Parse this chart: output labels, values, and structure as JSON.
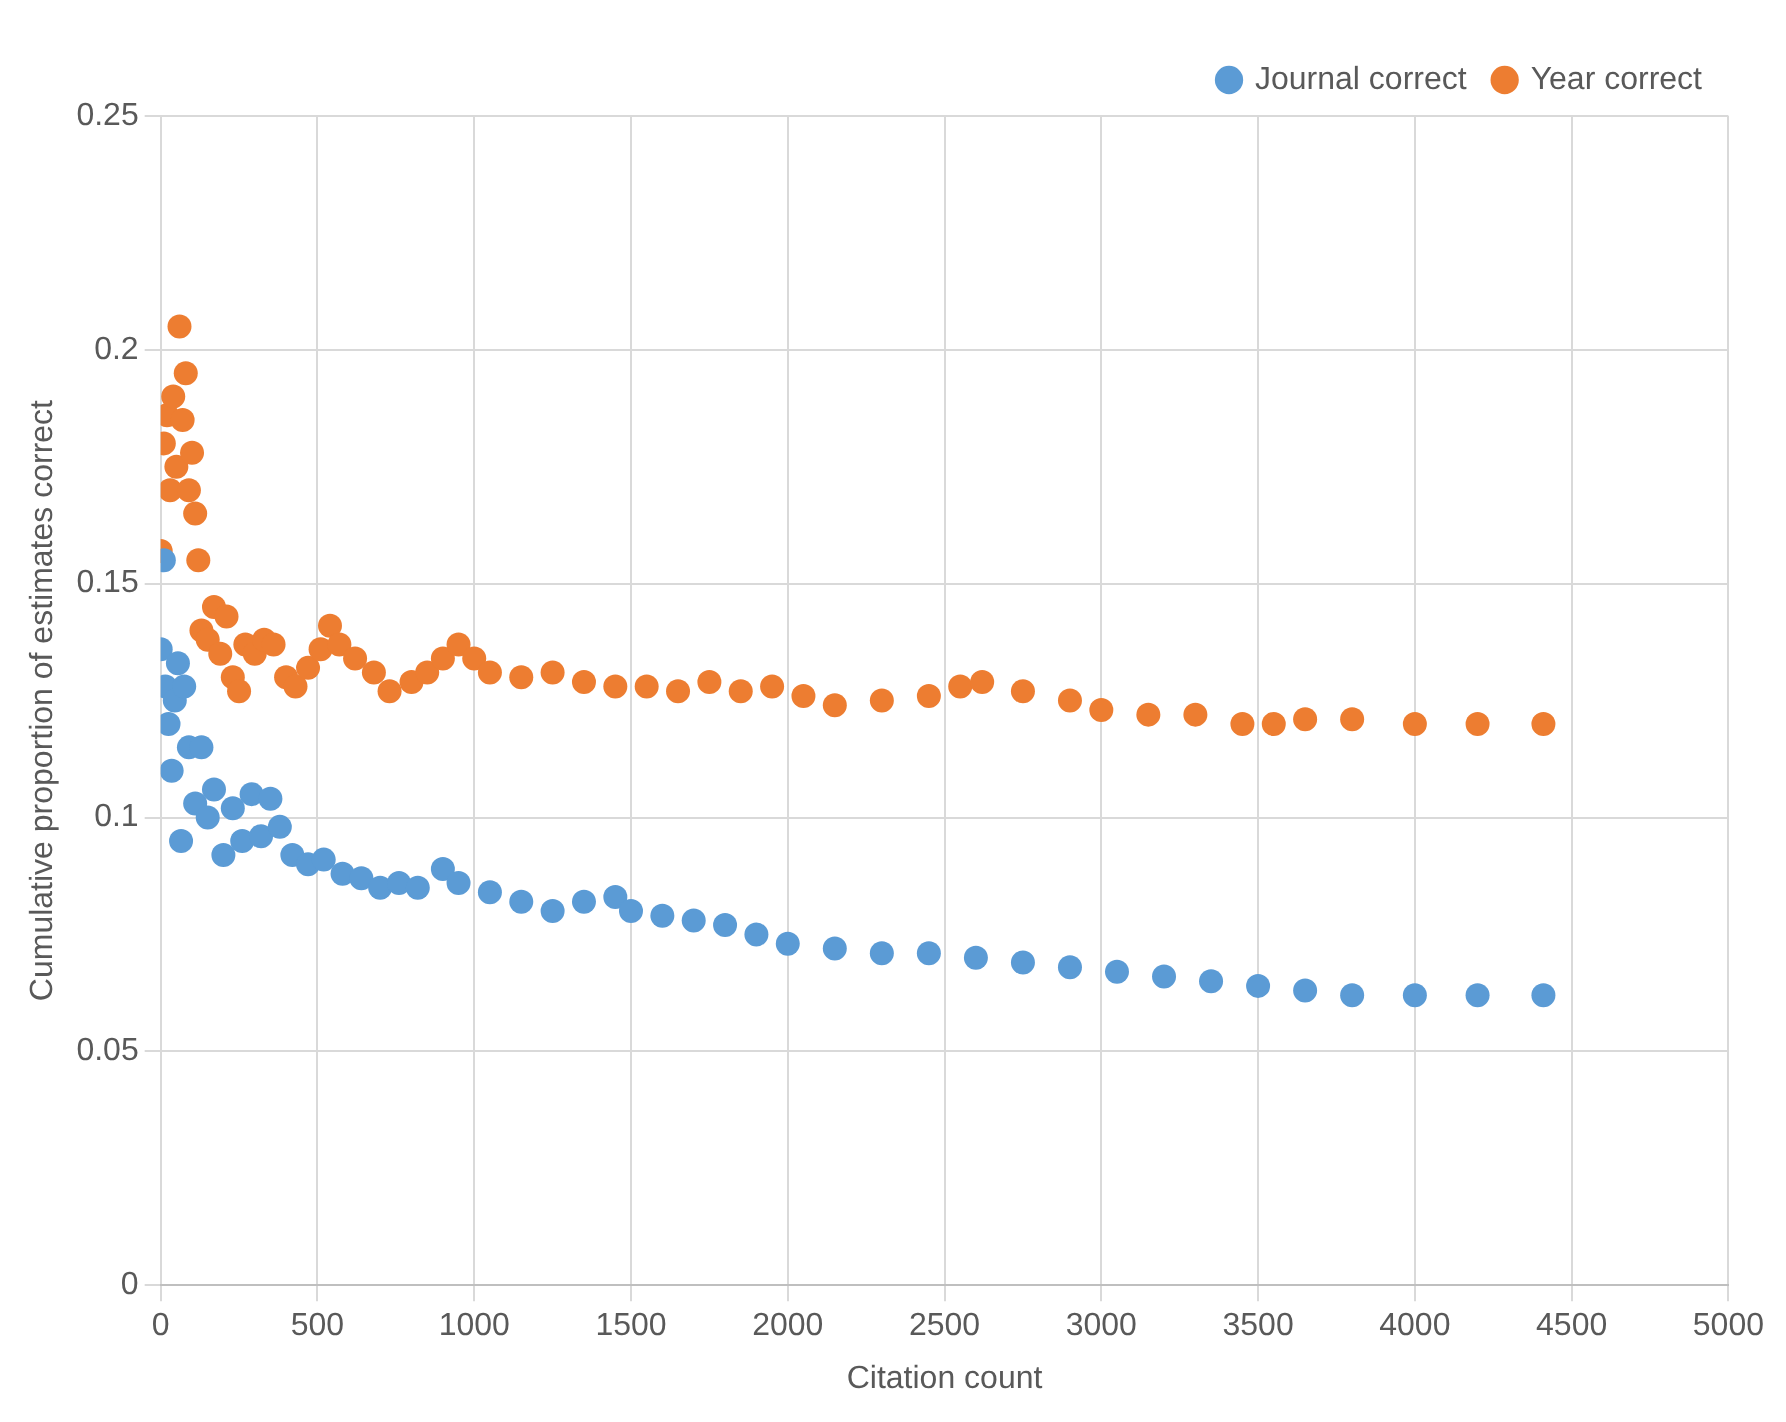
{
  "chart_data": {
    "type": "scatter",
    "xlabel": "Citation count",
    "ylabel": "Cumulative proportion of estimates correct",
    "xlim": [
      0,
      5000
    ],
    "xticks": [
      0,
      500,
      1000,
      1500,
      2000,
      2500,
      3000,
      3500,
      4000,
      4500,
      5000
    ],
    "ylim": [
      0,
      0.25
    ],
    "yticks": [
      0,
      0.05,
      0.1,
      0.15,
      0.2,
      0.25
    ],
    "grid": true,
    "legend": "top right",
    "marker": "circle",
    "series": [
      {
        "name": "Journal correct",
        "color": "#5b9bd5",
        "x": [
          0,
          10,
          15,
          25,
          35,
          45,
          55,
          65,
          75,
          90,
          110,
          130,
          150,
          170,
          200,
          230,
          260,
          290,
          320,
          350,
          380,
          420,
          470,
          520,
          580,
          640,
          700,
          760,
          820,
          900,
          950,
          1050,
          1150,
          1250,
          1350,
          1450,
          1500,
          1600,
          1700,
          1800,
          1900,
          2000,
          2150,
          2300,
          2450,
          2600,
          2750,
          2900,
          3050,
          3200,
          3350,
          3500,
          3650,
          3800,
          4000,
          4200,
          4410
        ],
        "values": [
          0.136,
          0.155,
          0.128,
          0.12,
          0.11,
          0.125,
          0.133,
          0.095,
          0.128,
          0.115,
          0.103,
          0.115,
          0.1,
          0.106,
          0.092,
          0.102,
          0.095,
          0.105,
          0.096,
          0.104,
          0.098,
          0.092,
          0.09,
          0.091,
          0.088,
          0.087,
          0.085,
          0.086,
          0.085,
          0.089,
          0.086,
          0.084,
          0.082,
          0.08,
          0.082,
          0.083,
          0.08,
          0.079,
          0.078,
          0.077,
          0.075,
          0.073,
          0.072,
          0.071,
          0.071,
          0.07,
          0.069,
          0.068,
          0.067,
          0.066,
          0.065,
          0.064,
          0.063,
          0.062,
          0.062,
          0.062,
          0.062
        ]
      },
      {
        "name": "Year correct",
        "color": "#ed7d31",
        "x": [
          0,
          10,
          20,
          30,
          40,
          50,
          60,
          70,
          80,
          90,
          100,
          110,
          120,
          130,
          150,
          170,
          190,
          210,
          230,
          250,
          270,
          300,
          330,
          360,
          400,
          430,
          470,
          510,
          540,
          570,
          620,
          680,
          730,
          800,
          850,
          900,
          950,
          1000,
          1050,
          1150,
          1250,
          1350,
          1450,
          1550,
          1650,
          1750,
          1850,
          1950,
          2050,
          2150,
          2300,
          2450,
          2550,
          2620,
          2750,
          2900,
          3000,
          3150,
          3300,
          3450,
          3550,
          3650,
          3800,
          4000,
          4200,
          4410
        ],
        "values": [
          0.157,
          0.18,
          0.186,
          0.17,
          0.19,
          0.175,
          0.205,
          0.185,
          0.195,
          0.17,
          0.178,
          0.165,
          0.155,
          0.14,
          0.138,
          0.145,
          0.135,
          0.143,
          0.13,
          0.127,
          0.137,
          0.135,
          0.138,
          0.137,
          0.13,
          0.128,
          0.132,
          0.136,
          0.141,
          0.137,
          0.134,
          0.131,
          0.127,
          0.129,
          0.131,
          0.134,
          0.137,
          0.134,
          0.131,
          0.13,
          0.131,
          0.129,
          0.128,
          0.128,
          0.127,
          0.129,
          0.127,
          0.128,
          0.126,
          0.124,
          0.125,
          0.126,
          0.128,
          0.129,
          0.127,
          0.125,
          0.123,
          0.122,
          0.122,
          0.12,
          0.12,
          0.121,
          0.121,
          0.12,
          0.12,
          0.12
        ]
      }
    ]
  }
}
